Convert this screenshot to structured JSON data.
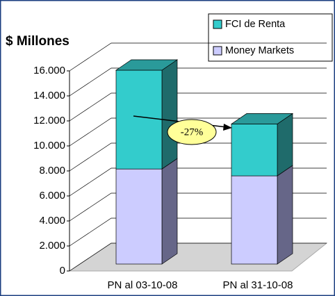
{
  "chart_data": {
    "type": "bar3d_stacked",
    "title": "$ Millones",
    "categories": [
      "PN al 03-10-08",
      "PN al 31-10-08"
    ],
    "series": [
      {
        "name": "Money Markets",
        "color": "#ccccff",
        "values": [
          7600,
          7050
        ]
      },
      {
        "name": "FCI de Renta",
        "color": "#33cccc",
        "values": [
          7900,
          4150
        ]
      }
    ],
    "ylim": [
      0,
      16000
    ],
    "yticks": [
      0,
      {
        "value": 2000,
        "label": "2.000"
      },
      {
        "value": 4000,
        "label": "4.000"
      },
      {
        "value": 6000,
        "label": "6.000"
      },
      {
        "value": 8000,
        "label": "8.000"
      },
      {
        "value": 10000,
        "label": "10.000"
      },
      {
        "value": 12000,
        "label": "12.000"
      },
      {
        "value": 14000,
        "label": "14.000"
      },
      {
        "value": 16000,
        "label": "16.000"
      }
    ],
    "annotation": "-27%",
    "grid": true
  }
}
